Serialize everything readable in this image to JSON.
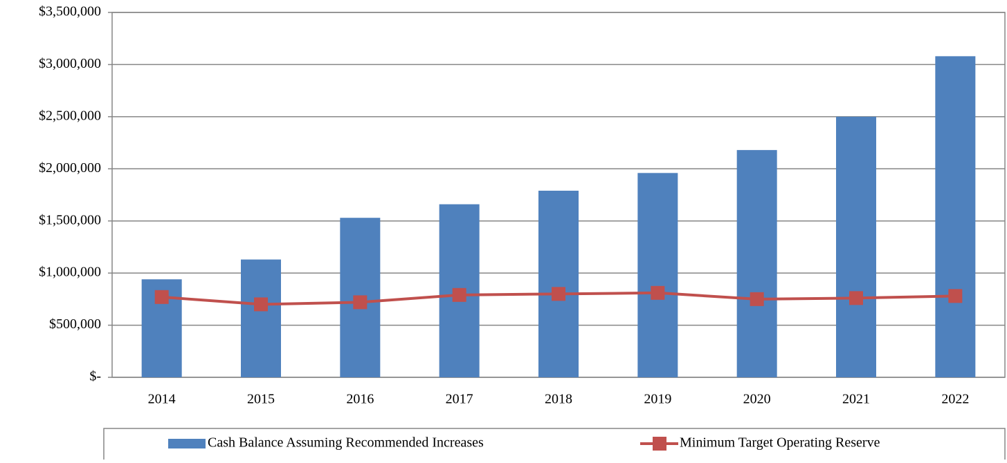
{
  "chart_data": {
    "type": "bar",
    "categories": [
      "2014",
      "2015",
      "2016",
      "2017",
      "2018",
      "2019",
      "2020",
      "2021",
      "2022"
    ],
    "series": [
      {
        "name": "Cash Balance Assuming Recommended Increases",
        "type": "bar",
        "color": "#4f81bd",
        "values": [
          940000,
          1130000,
          1530000,
          1660000,
          1790000,
          1960000,
          2180000,
          2500000,
          3080000
        ]
      },
      {
        "name": "Minimum Target Operating Reserve",
        "type": "line",
        "color": "#c0504d",
        "values": [
          770000,
          700000,
          720000,
          790000,
          800000,
          810000,
          750000,
          760000,
          780000
        ]
      }
    ],
    "ylim": [
      0,
      3500000
    ],
    "yticks": [
      {
        "value": 0,
        "label": "$-"
      },
      {
        "value": 500000,
        "label": "$500,000"
      },
      {
        "value": 1000000,
        "label": "$1,000,000"
      },
      {
        "value": 1500000,
        "label": "$1,500,000"
      },
      {
        "value": 2000000,
        "label": "$2,000,000"
      },
      {
        "value": 2500000,
        "label": "$2,500,000"
      },
      {
        "value": 3000000,
        "label": "$3,000,000"
      },
      {
        "value": 3500000,
        "label": "$3,500,000"
      }
    ],
    "grid": true,
    "legend": "bottom"
  }
}
